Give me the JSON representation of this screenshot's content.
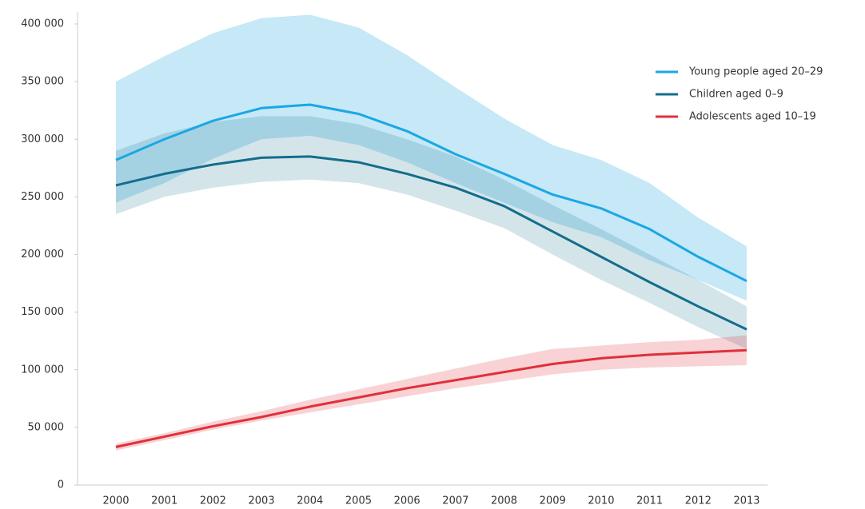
{
  "chart_data": {
    "type": "line",
    "categories": [
      "2000",
      "2001",
      "2002",
      "2003",
      "2004",
      "2005",
      "2006",
      "2007",
      "2008",
      "2009",
      "2010",
      "2011",
      "2012",
      "2013"
    ],
    "ylim": [
      0,
      400000
    ],
    "yticks": [
      0,
      {
        "value": 50000,
        "label": "50 000"
      },
      {
        "value": 100000,
        "label": "100 000"
      },
      {
        "value": 150000,
        "label": "150 000"
      },
      {
        "value": 200000,
        "label": "200 000"
      },
      {
        "value": 250000,
        "label": "250 000"
      },
      {
        "value": 300000,
        "label": "300 000"
      },
      {
        "value": 350000,
        "label": "350 000"
      },
      {
        "value": 400000,
        "label": "400 000"
      }
    ],
    "grid": false,
    "legend": "top-right",
    "series": [
      {
        "name": "Young people aged 20–29",
        "color": "#1aa7e4",
        "band_color": "#c6e8f7",
        "values": [
          282000,
          300000,
          316000,
          327000,
          330000,
          322000,
          307000,
          287000,
          270000,
          252000,
          240000,
          222000,
          198000,
          177000
        ],
        "band_upper": [
          350000,
          372000,
          392000,
          405000,
          408000,
          397000,
          373000,
          345000,
          318000,
          295000,
          282000,
          262000,
          232000,
          207000
        ],
        "band_lower": [
          245000,
          262000,
          283000,
          300000,
          303000,
          295000,
          280000,
          262000,
          245000,
          228000,
          215000,
          195000,
          178000,
          160000
        ]
      },
      {
        "name": "Children aged 0–9",
        "color": "#136d8c",
        "band_color": "rgba(19,109,140,0.18)",
        "values": [
          260000,
          270000,
          278000,
          284000,
          285000,
          280000,
          270000,
          258000,
          242000,
          220000,
          198000,
          176000,
          155000,
          135000
        ],
        "band_upper": [
          290000,
          305000,
          315000,
          320000,
          320000,
          313000,
          300000,
          285000,
          265000,
          243000,
          222000,
          200000,
          178000,
          155000
        ],
        "band_lower": [
          235000,
          250000,
          258000,
          263000,
          265000,
          262000,
          252000,
          238000,
          223000,
          200000,
          178000,
          158000,
          137000,
          118000
        ]
      },
      {
        "name": "Adolescents aged 10–19",
        "color": "#e0303b",
        "band_color": "rgba(224,48,59,0.22)",
        "values": [
          33000,
          42000,
          51000,
          59000,
          68000,
          76000,
          84000,
          91000,
          98000,
          105000,
          110000,
          113000,
          115000,
          117000
        ],
        "band_upper": [
          36000,
          45000,
          55000,
          64000,
          74000,
          83000,
          92000,
          101000,
          110000,
          118000,
          121000,
          124000,
          126000,
          130000
        ],
        "band_lower": [
          30000,
          39000,
          48000,
          56000,
          63000,
          70000,
          77000,
          84000,
          90000,
          96000,
          100000,
          102000,
          103000,
          104000
        ]
      }
    ]
  }
}
